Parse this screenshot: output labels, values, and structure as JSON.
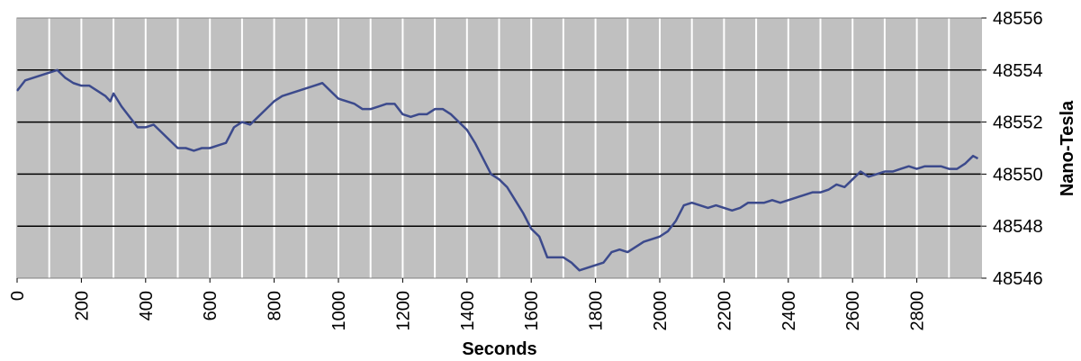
{
  "chart_data": {
    "type": "line",
    "xlabel": "Seconds",
    "ylabel": "Nano-Tesla",
    "x": [
      0,
      25,
      50,
      75,
      100,
      125,
      150,
      175,
      200,
      225,
      250,
      275,
      290,
      300,
      325,
      350,
      375,
      400,
      425,
      450,
      475,
      500,
      525,
      550,
      575,
      600,
      625,
      650,
      675,
      700,
      725,
      750,
      775,
      800,
      825,
      850,
      875,
      900,
      925,
      950,
      975,
      1000,
      1025,
      1050,
      1075,
      1100,
      1125,
      1150,
      1175,
      1200,
      1225,
      1250,
      1275,
      1300,
      1325,
      1350,
      1375,
      1400,
      1425,
      1450,
      1475,
      1500,
      1525,
      1550,
      1575,
      1600,
      1625,
      1650,
      1675,
      1700,
      1725,
      1750,
      1775,
      1800,
      1825,
      1850,
      1875,
      1900,
      1925,
      1950,
      1975,
      2000,
      2025,
      2050,
      2075,
      2100,
      2125,
      2150,
      2175,
      2200,
      2225,
      2250,
      2275,
      2300,
      2325,
      2350,
      2375,
      2400,
      2425,
      2450,
      2475,
      2500,
      2525,
      2550,
      2575,
      2600,
      2625,
      2650,
      2675,
      2700,
      2725,
      2750,
      2775,
      2800,
      2825,
      2850,
      2875,
      2900,
      2925,
      2950,
      2975,
      2990
    ],
    "series": [
      {
        "color": "#3c4a8c",
        "values": [
          48553.2,
          48553.6,
          48553.7,
          48553.8,
          48553.9,
          48554.0,
          48553.7,
          48553.5,
          48553.4,
          48553.4,
          48553.2,
          48553.0,
          48552.8,
          48553.1,
          48552.6,
          48552.2,
          48551.8,
          48551.8,
          48551.9,
          48551.6,
          48551.3,
          48551.0,
          48551.0,
          48550.9,
          48551.0,
          48551.0,
          48551.1,
          48551.2,
          48551.8,
          48552.0,
          48551.9,
          48552.2,
          48552.5,
          48552.8,
          48553.0,
          48553.1,
          48553.2,
          48553.3,
          48553.4,
          48553.5,
          48553.2,
          48552.9,
          48552.8,
          48552.7,
          48552.5,
          48552.5,
          48552.6,
          48552.7,
          48552.7,
          48552.3,
          48552.2,
          48552.3,
          48552.3,
          48552.5,
          48552.5,
          48552.3,
          48552.0,
          48551.7,
          48551.2,
          48550.6,
          48550.0,
          48549.8,
          48549.5,
          48549.0,
          48548.5,
          48547.9,
          48547.6,
          48546.8,
          48546.8,
          48546.8,
          48546.6,
          48546.3,
          48546.4,
          48546.5,
          48546.6,
          48547.0,
          48547.1,
          48547.0,
          48547.2,
          48547.4,
          48547.5,
          48547.6,
          48547.8,
          48548.2,
          48548.8,
          48548.9,
          48548.8,
          48548.7,
          48548.8,
          48548.7,
          48548.6,
          48548.7,
          48548.9,
          48548.9,
          48548.9,
          48549.0,
          48548.9,
          48549.0,
          48549.1,
          48549.2,
          48549.3,
          48549.3,
          48549.4,
          48549.6,
          48549.5,
          48549.8,
          48550.1,
          48549.9,
          48550.0,
          48550.1,
          48550.1,
          48550.2,
          48550.3,
          48550.2,
          48550.3,
          48550.3,
          48550.3,
          48550.2,
          48550.2,
          48550.4,
          48550.7,
          48550.6
        ]
      }
    ],
    "xlim": [
      0,
      3000
    ],
    "xticks": [
      0,
      200,
      400,
      600,
      800,
      1000,
      1200,
      1400,
      1600,
      1800,
      2000,
      2200,
      2400,
      2600,
      2800
    ],
    "xgrid": [
      0,
      100,
      200,
      300,
      400,
      500,
      600,
      700,
      800,
      900,
      1000,
      1100,
      1200,
      1300,
      1400,
      1500,
      1600,
      1700,
      1800,
      1900,
      2000,
      2100,
      2200,
      2300,
      2400,
      2500,
      2600,
      2700,
      2800,
      2900,
      3000
    ],
    "ylim": [
      48546,
      48556
    ],
    "yticks": [
      48546,
      48548,
      48550,
      48552,
      48554,
      48556
    ],
    "grid": true,
    "background": "#c0c0c0",
    "xgrid_color": "#ffffff",
    "ygrid_color": "#000000"
  }
}
